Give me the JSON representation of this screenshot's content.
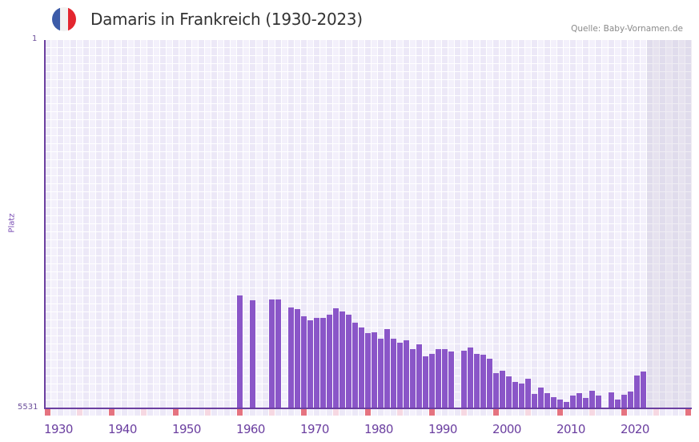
{
  "header": {
    "flag_icon": "france-flag-icon",
    "flag_colors": [
      "#3c5ba8",
      "#f2f2f2",
      "#e3262f"
    ],
    "title": "Damaris in Frankreich (1930-2023)",
    "source": "Quelle: Baby-Vornamen.de"
  },
  "colors": {
    "bar": "#8a56c8",
    "axis": "#6b3fa0",
    "decade_marker": "#e57380",
    "half_decade_marker": "#f6d8e2",
    "marker_a": "#ece8f7",
    "marker_b": "#f3f0fb"
  },
  "chart_data": {
    "type": "bar",
    "title": "Damaris in Frankreich (1930-2023)",
    "xlabel": "",
    "ylabel": "Platz",
    "y_inverted": true,
    "ylim": [
      1,
      5531
    ],
    "y_ticks": [
      "1",
      "5531"
    ],
    "x_range": [
      1930,
      2030
    ],
    "x_tick_labels": [
      "1930",
      "1940",
      "1950",
      "1960",
      "1970",
      "1980",
      "1990",
      "2000",
      "2010",
      "2020"
    ],
    "future_shaded_from": 2024,
    "grid": true,
    "legend": null,
    "x": [
      1960,
      1962,
      1965,
      1966,
      1968,
      1969,
      1970,
      1971,
      1972,
      1973,
      1974,
      1975,
      1976,
      1977,
      1978,
      1979,
      1980,
      1981,
      1982,
      1983,
      1984,
      1985,
      1986,
      1987,
      1988,
      1989,
      1990,
      1991,
      1992,
      1993,
      1995,
      1996,
      1997,
      1998,
      1999,
      2000,
      2001,
      2002,
      2003,
      2004,
      2005,
      2006,
      2007,
      2008,
      2009,
      2010,
      2011,
      2012,
      2013,
      2014,
      2015,
      2016,
      2018,
      2019,
      2020,
      2021,
      2022,
      2023
    ],
    "values": [
      3836,
      3908,
      3895,
      3895,
      4015,
      4039,
      4147,
      4208,
      4172,
      4172,
      4124,
      4027,
      4075,
      4124,
      4244,
      4316,
      4400,
      4388,
      4484,
      4340,
      4484,
      4545,
      4509,
      4641,
      4569,
      4749,
      4713,
      4641,
      4641,
      4677,
      4665,
      4617,
      4713,
      4725,
      4785,
      5002,
      4966,
      5050,
      5134,
      5158,
      5086,
      5314,
      5218,
      5302,
      5362,
      5398,
      5434,
      5338,
      5302,
      5374,
      5266,
      5338,
      5290,
      5398,
      5326,
      5278,
      5038,
      4978
    ]
  }
}
